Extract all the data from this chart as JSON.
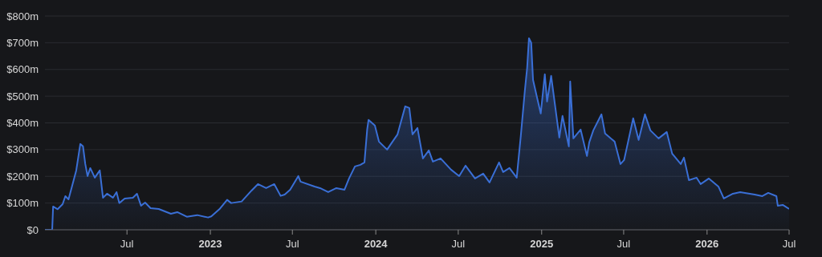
{
  "chart_data": {
    "type": "area",
    "x": [
      "2022-01-01",
      "2022-01-17",
      "2022-01-19",
      "2022-01-29",
      "2022-02-09",
      "2022-02-15",
      "2022-02-22",
      "2022-03-03",
      "2022-03-11",
      "2022-03-20",
      "2022-03-26",
      "2022-03-31",
      "2022-04-05",
      "2022-04-11",
      "2022-04-21",
      "2022-05-02",
      "2022-05-09",
      "2022-05-18",
      "2022-05-31",
      "2022-06-08",
      "2022-06-14",
      "2022-06-26",
      "2022-07-14",
      "2022-07-23",
      "2022-08-01",
      "2022-08-10",
      "2022-08-22",
      "2022-09-09",
      "2022-10-06",
      "2022-10-20",
      "2022-11-10",
      "2022-12-03",
      "2022-12-27",
      "2023-01-03",
      "2023-01-21",
      "2023-02-07",
      "2023-02-16",
      "2023-03-11",
      "2023-04-02",
      "2023-04-16",
      "2023-05-04",
      "2023-05-22",
      "2023-06-05",
      "2023-06-14",
      "2023-06-26",
      "2023-07-14",
      "2023-07-19",
      "2023-08-19",
      "2023-08-31",
      "2023-09-18",
      "2023-10-06",
      "2023-10-24",
      "2023-11-03",
      "2023-11-16",
      "2023-11-28",
      "2023-12-07",
      "2023-12-13",
      "2023-12-16",
      "2023-12-30",
      "2024-01-08",
      "2024-01-26",
      "2024-02-07",
      "2024-02-18",
      "2024-03-06",
      "2024-03-15",
      "2024-03-22",
      "2024-04-02",
      "2024-04-14",
      "2024-04-27",
      "2024-05-06",
      "2024-05-23",
      "2024-06-15",
      "2024-07-03",
      "2024-07-17",
      "2024-08-07",
      "2024-08-25",
      "2024-09-08",
      "2024-09-29",
      "2024-10-08",
      "2024-10-22",
      "2024-11-07",
      "2024-11-16",
      "2024-11-25",
      "2024-11-30",
      "2024-12-04",
      "2024-12-09",
      "2024-12-13",
      "2024-12-21",
      "2024-12-30",
      "2025-01-08",
      "2025-01-13",
      "2025-01-22",
      "2025-02-09",
      "2025-02-16",
      "2025-03-02",
      "2025-03-05",
      "2025-03-12",
      "2025-03-28",
      "2025-04-11",
      "2025-04-16",
      "2025-04-25",
      "2025-05-13",
      "2025-05-21",
      "2025-06-11",
      "2025-06-24",
      "2025-07-02",
      "2025-07-22",
      "2025-08-03",
      "2025-08-17",
      "2025-08-29",
      "2025-09-16",
      "2025-10-04",
      "2025-10-16",
      "2025-11-04",
      "2025-11-11",
      "2025-11-22",
      "2025-12-09",
      "2025-12-18",
      "2026-01-05",
      "2026-01-26",
      "2026-02-07",
      "2026-02-27",
      "2026-03-15",
      "2026-04-16",
      "2026-05-03",
      "2026-05-16",
      "2026-06-03",
      "2026-06-06",
      "2026-06-17",
      "2026-07-01"
    ],
    "series": [
      {
        "color": "#3a6fd6",
        "values": [
          0,
          0,
          87,
          77,
          96,
          126,
          114,
          171,
          222,
          321,
          312,
          246,
          201,
          231,
          195,
          222,
          120,
          135,
          120,
          141,
          100,
          117,
          120,
          135,
          90,
          102,
          81,
          78,
          60,
          66,
          49,
          55,
          46,
          50,
          77,
          112,
          100,
          106,
          147,
          171,
          156,
          171,
          127,
          132,
          150,
          201,
          180,
          162,
          156,
          141,
          156,
          150,
          192,
          237,
          243,
          252,
          375,
          411,
          390,
          330,
          300,
          330,
          357,
          462,
          456,
          357,
          381,
          267,
          297,
          255,
          267,
          225,
          201,
          240,
          192,
          210,
          177,
          252,
          216,
          231,
          195,
          351,
          522,
          606,
          717,
          700,
          561,
          501,
          435,
          582,
          480,
          576,
          345,
          426,
          312,
          555,
          342,
          375,
          276,
          327,
          372,
          432,
          360,
          330,
          246,
          261,
          417,
          336,
          432,
          372,
          342,
          366,
          285,
          246,
          270,
          186,
          195,
          171,
          192,
          162,
          117,
          135,
          141,
          132,
          126,
          138,
          126,
          90,
          93,
          78
        ]
      }
    ],
    "xlim": [
      "2022-01-01",
      "2026-07-01"
    ],
    "xticks": [
      {
        "value": "2022-07-01",
        "label": "Jul"
      },
      {
        "value": "2023-01-01",
        "label": "2023"
      },
      {
        "value": "2023-07-01",
        "label": "Jul"
      },
      {
        "value": "2024-01-01",
        "label": "2024"
      },
      {
        "value": "2024-07-01",
        "label": "Jul"
      },
      {
        "value": "2025-01-01",
        "label": "2025"
      },
      {
        "value": "2025-07-01",
        "label": "Jul"
      },
      {
        "value": "2026-01-01",
        "label": "2026"
      },
      {
        "value": "2026-07-01",
        "label": "Jul"
      }
    ],
    "ylim": [
      0,
      800
    ],
    "yticks": [
      {
        "value": 0,
        "label": "$0"
      },
      {
        "value": 100,
        "label": "$100m"
      },
      {
        "value": 200,
        "label": "$200m"
      },
      {
        "value": 300,
        "label": "$300m"
      },
      {
        "value": 400,
        "label": "$400m"
      },
      {
        "value": 500,
        "label": "$500m"
      },
      {
        "value": 600,
        "label": "$600m"
      },
      {
        "value": 700,
        "label": "$700m"
      },
      {
        "value": 800,
        "label": "$800m"
      }
    ],
    "grid": "y",
    "legend": false
  }
}
